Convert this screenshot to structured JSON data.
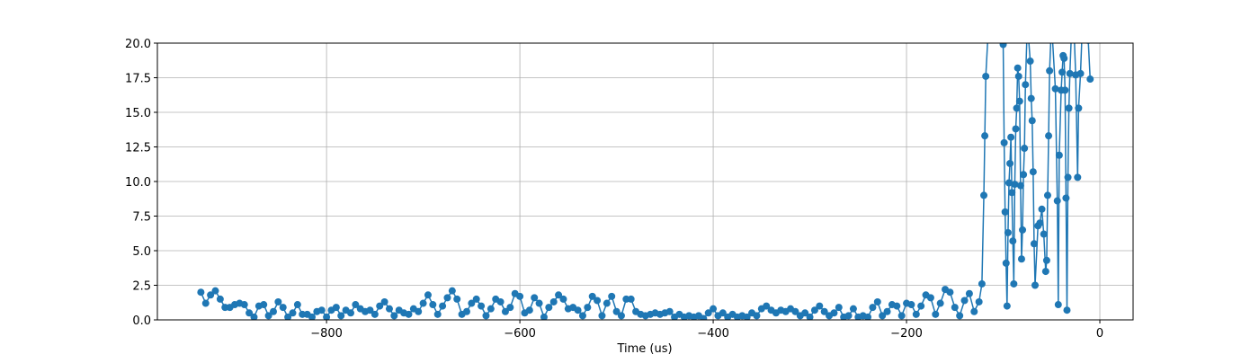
{
  "chart_data": {
    "type": "line",
    "xlabel": "Time (us)",
    "x": [
      -930,
      -925,
      -920,
      -915,
      -910,
      -905,
      -900,
      -895,
      -890,
      -885,
      -880,
      -875,
      -870,
      -865,
      -860,
      -855,
      -850,
      -845,
      -840,
      -835,
      -830,
      -825,
      -820,
      -815,
      -810,
      -805,
      -800,
      -795,
      -790,
      -785,
      -780,
      -775,
      -770,
      -765,
      -760,
      -755,
      -750,
      -745,
      -740,
      -735,
      -730,
      -725,
      -720,
      -715,
      -710,
      -705,
      -700,
      -695,
      -690,
      -685,
      -680,
      -675,
      -670,
      -665,
      -660,
      -655,
      -650,
      -645,
      -640,
      -635,
      -630,
      -625,
      -620,
      -615,
      -610,
      -605,
      -600,
      -595,
      -590,
      -585,
      -580,
      -575,
      -570,
      -565,
      -560,
      -555,
      -550,
      -545,
      -540,
      -535,
      -530,
      -525,
      -520,
      -515,
      -510,
      -505,
      -500,
      -495,
      -490,
      -485,
      -480,
      -475,
      -470,
      -465,
      -460,
      -455,
      -450,
      -445,
      -440,
      -435,
      -430,
      -425,
      -420,
      -415,
      -410,
      -405,
      -400,
      -395,
      -390,
      -385,
      -380,
      -375,
      -370,
      -365,
      -360,
      -355,
      -350,
      -345,
      -340,
      -335,
      -330,
      -325,
      -320,
      -315,
      -310,
      -305,
      -300,
      -295,
      -290,
      -285,
      -280,
      -275,
      -270,
      -265,
      -260,
      -255,
      -250,
      -245,
      -240,
      -235,
      -230,
      -225,
      -220,
      -215,
      -210,
      -205,
      -200,
      -195,
      -190,
      -185,
      -180,
      -175,
      -170,
      -165,
      -160,
      -155,
      -150,
      -145,
      -140,
      -135,
      -130,
      -125,
      -122,
      -120,
      -119,
      -118,
      -115,
      -100,
      -99,
      -98,
      -97,
      -96,
      -95,
      -94,
      -93,
      -92,
      -91,
      -90,
      -89,
      -88,
      -87,
      -86,
      -85,
      -84,
      -83,
      -82,
      -81,
      -80,
      -79,
      -78,
      -77,
      -75,
      -72,
      -71,
      -70,
      -69,
      -68,
      -67,
      -64,
      -62,
      -60,
      -58,
      -56,
      -55,
      -54,
      -53,
      -52,
      -50,
      -46,
      -44,
      -43,
      -42,
      -40,
      -39,
      -38,
      -37,
      -36,
      -35,
      -34,
      -33,
      -32,
      -31,
      -29,
      -27,
      -25,
      -23,
      -22,
      -20,
      -18,
      -12,
      -10
    ],
    "series": [
      {
        "color": "#1f77b4",
        "values": [
          2.0,
          1.2,
          1.8,
          2.1,
          1.5,
          0.9,
          0.9,
          1.1,
          1.2,
          1.1,
          0.5,
          0.2,
          1.0,
          1.1,
          0.3,
          0.6,
          1.3,
          0.9,
          0.2,
          0.5,
          1.1,
          0.4,
          0.4,
          0.2,
          0.6,
          0.7,
          0.2,
          0.7,
          0.9,
          0.3,
          0.7,
          0.5,
          1.1,
          0.8,
          0.6,
          0.7,
          0.4,
          1.0,
          1.3,
          0.8,
          0.3,
          0.7,
          0.5,
          0.4,
          0.8,
          0.6,
          1.2,
          1.8,
          1.1,
          0.4,
          1.0,
          1.6,
          2.1,
          1.5,
          0.4,
          0.6,
          1.2,
          1.5,
          1.0,
          0.3,
          0.8,
          1.5,
          1.3,
          0.6,
          0.9,
          1.9,
          1.7,
          0.5,
          0.7,
          1.6,
          1.2,
          0.2,
          0.9,
          1.3,
          1.8,
          1.5,
          0.8,
          0.9,
          0.7,
          0.3,
          0.9,
          1.7,
          1.4,
          0.3,
          1.2,
          1.7,
          0.6,
          0.3,
          1.5,
          1.5,
          0.6,
          0.4,
          0.3,
          0.4,
          0.5,
          0.4,
          0.5,
          0.6,
          0.2,
          0.4,
          0.2,
          0.3,
          0.2,
          0.3,
          0.1,
          0.5,
          0.8,
          0.3,
          0.5,
          0.2,
          0.4,
          0.2,
          0.3,
          0.2,
          0.5,
          0.3,
          0.8,
          1.0,
          0.7,
          0.5,
          0.7,
          0.6,
          0.8,
          0.6,
          0.3,
          0.5,
          0.2,
          0.7,
          1.0,
          0.6,
          0.3,
          0.5,
          0.9,
          0.2,
          0.3,
          0.8,
          0.2,
          0.3,
          0.2,
          0.9,
          1.3,
          0.3,
          0.6,
          1.1,
          1.0,
          0.3,
          1.2,
          1.1,
          0.4,
          1.0,
          1.8,
          1.6,
          0.4,
          1.2,
          2.2,
          2.0,
          0.9,
          0.3,
          1.4,
          1.9,
          0.6,
          1.3,
          2.6,
          9.0,
          13.3,
          17.6,
          21.5,
          19.9,
          12.8,
          7.8,
          4.1,
          1.0,
          6.3,
          9.9,
          11.3,
          13.2,
          9.2,
          5.7,
          2.6,
          9.8,
          13.8,
          15.3,
          18.2,
          17.6,
          15.8,
          9.7,
          4.4,
          6.5,
          10.5,
          12.4,
          17.0,
          21.5,
          18.7,
          16.0,
          14.4,
          10.7,
          5.5,
          2.5,
          6.8,
          7.0,
          8.0,
          6.2,
          3.5,
          4.3,
          9.0,
          13.3,
          18.0,
          21.5,
          16.7,
          8.6,
          1.1,
          11.9,
          16.6,
          17.9,
          19.1,
          18.9,
          16.6,
          8.8,
          0.7,
          10.3,
          15.3,
          17.8,
          21.5,
          21.5,
          17.7,
          10.3,
          15.3,
          17.8,
          21.5,
          20.2,
          17.4
        ]
      }
    ],
    "xlim": [
      -975,
      34.4
    ],
    "ylim": [
      0,
      20
    ],
    "xticks": [
      {
        "value": -800,
        "label": "−800"
      },
      {
        "value": -600,
        "label": "−600"
      },
      {
        "value": -400,
        "label": "−400"
      },
      {
        "value": -200,
        "label": "−200"
      },
      0
    ],
    "yticks": [
      {
        "value": 0,
        "label": "0.0"
      },
      2.5,
      {
        "value": 5,
        "label": "5.0"
      },
      7.5,
      {
        "value": 10,
        "label": "10.0"
      },
      12.5,
      {
        "value": 15,
        "label": "15.0"
      },
      17.5,
      {
        "value": 20,
        "label": "20.0"
      }
    ],
    "grid": true
  }
}
